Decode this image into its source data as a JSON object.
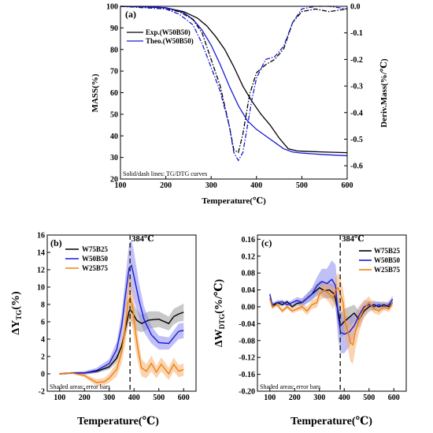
{
  "chart_data": [
    {
      "type": "line",
      "panel_label": "(a)",
      "xlabel": "Temperature(℃)",
      "ylabel": "MASS(%)",
      "ylabel_right": "Deriv.Mass(%/℃)",
      "xlim": [
        100,
        600
      ],
      "ylim": [
        20,
        100
      ],
      "ylim_right": [
        -0.65,
        0.0
      ],
      "xticks": [
        "100",
        "200",
        "300",
        "400",
        "500",
        "600"
      ],
      "yticks": [
        "20",
        "30",
        "40",
        "50",
        "60",
        "70",
        "80",
        "90",
        "100"
      ],
      "yticks_right": [
        "0.0",
        "-0.1",
        "-0.2",
        "-0.3",
        "-0.4",
        "-0.5",
        "-0.6"
      ],
      "legend_position": "upper-left",
      "note": "Solid/dash lines: TG/DTG curves",
      "series": [
        {
          "name": "Exp.(W50B50)",
          "color": "#000000",
          "axis": "left",
          "style": "solid",
          "x": [
            100,
            150,
            200,
            240,
            270,
            290,
            310,
            330,
            350,
            370,
            390,
            410,
            430,
            450,
            470,
            490,
            510,
            550,
            600
          ],
          "y": [
            100,
            99.8,
            99.3,
            97.5,
            94.5,
            91,
            86,
            80,
            72,
            63,
            56,
            50,
            45,
            39,
            34,
            33,
            32.8,
            32.5,
            32.2
          ]
        },
        {
          "name": "Theo.(W50B50)",
          "color": "#1a1ad8",
          "axis": "left",
          "style": "solid",
          "x": [
            100,
            150,
            200,
            240,
            260,
            280,
            300,
            320,
            340,
            360,
            380,
            400,
            420,
            440,
            460,
            480,
            500,
            550,
            600
          ],
          "y": [
            100,
            99.8,
            99.4,
            97,
            94,
            89,
            82,
            73,
            63,
            54,
            47,
            43,
            40,
            37,
            34,
            32.5,
            32,
            31.3,
            30.8
          ]
        },
        {
          "name": "Exp.(W50B50) DTG",
          "color": "#000000",
          "axis": "right",
          "style": "dashdot",
          "x": [
            100,
            150,
            200,
            230,
            260,
            280,
            300,
            320,
            340,
            350,
            360,
            370,
            385,
            400,
            420,
            440,
            460,
            480,
            500,
            530,
            560,
            600
          ],
          "y": [
            0,
            -0.005,
            -0.01,
            -0.02,
            -0.05,
            -0.1,
            -0.2,
            -0.3,
            -0.45,
            -0.54,
            -0.55,
            -0.48,
            -0.33,
            -0.25,
            -0.22,
            -0.2,
            -0.16,
            -0.06,
            -0.02,
            -0.01,
            -0.02,
            -0.01
          ]
        },
        {
          "name": "Theo.(W50B50) DTG",
          "color": "#1a1ad8",
          "axis": "right",
          "style": "dashdot",
          "x": [
            100,
            150,
            200,
            230,
            260,
            280,
            300,
            320,
            340,
            350,
            360,
            370,
            380,
            390,
            400,
            420,
            440,
            460,
            480,
            500,
            530,
            560,
            600
          ],
          "y": [
            0,
            -0.005,
            -0.01,
            -0.03,
            -0.07,
            -0.14,
            -0.23,
            -0.32,
            -0.45,
            -0.55,
            -0.58,
            -0.55,
            -0.45,
            -0.35,
            -0.27,
            -0.2,
            -0.19,
            -0.15,
            -0.06,
            -0.01,
            0.0,
            0.0,
            -0.01
          ]
        }
      ]
    },
    {
      "type": "line",
      "panel_label": "(b)",
      "xlabel": "Temperature(℃)",
      "ylabel": "ΔY",
      "ylabel_sub": "TG",
      "ylabel_unit": "(%)",
      "xlim": [
        50,
        650
      ],
      "ylim": [
        -2,
        16
      ],
      "xticks": [
        "100",
        "200",
        "300",
        "400",
        "500",
        "600"
      ],
      "yticks": [
        "-2",
        "0",
        "2",
        "4",
        "6",
        "8",
        "10",
        "12",
        "14",
        "16"
      ],
      "vline": {
        "x": 384,
        "label": "384℃"
      },
      "legend_position": "upper-left",
      "note": "Shaded areas: error bars",
      "series": [
        {
          "name": "W75B25",
          "color": "#000000",
          "band_color": "#9a9a9a",
          "x": [
            100,
            150,
            200,
            250,
            300,
            330,
            350,
            370,
            380,
            384,
            395,
            410,
            430,
            460,
            500,
            540,
            560,
            580,
            600
          ],
          "y": [
            0,
            0.1,
            0.1,
            0.3,
            0.8,
            1.8,
            3.2,
            5.8,
            7.2,
            7.4,
            7.0,
            6.2,
            5.8,
            6.2,
            6.3,
            5.8,
            6.6,
            6.9,
            7.1
          ],
          "err": [
            0.1,
            0.1,
            0.15,
            0.2,
            0.3,
            0.5,
            0.7,
            1.0,
            1.2,
            1.2,
            1.2,
            1.2,
            1.0,
            1.0,
            0.9,
            0.8,
            0.9,
            0.9,
            1.0
          ]
        },
        {
          "name": "W50B50",
          "color": "#1a1ad8",
          "band_color": "#8c8cf0",
          "x": [
            100,
            150,
            200,
            250,
            300,
            330,
            350,
            365,
            380,
            390,
            400,
            420,
            440,
            470,
            500,
            540,
            560,
            580,
            600
          ],
          "y": [
            0,
            0.1,
            0.1,
            0.4,
            1.2,
            2.8,
            5.5,
            9.0,
            12.2,
            12.5,
            11.2,
            8.5,
            6.3,
            4.5,
            3.6,
            3.5,
            4.2,
            4.9,
            5.0
          ],
          "err": [
            0.1,
            0.1,
            0.2,
            0.3,
            0.5,
            0.9,
            1.4,
            2.0,
            2.8,
            3.0,
            2.8,
            2.0,
            1.5,
            1.0,
            0.8,
            0.7,
            0.8,
            0.9,
            0.9
          ]
        },
        {
          "name": "W25B75",
          "color": "#f08010",
          "band_color": "#f5b070",
          "x": [
            100,
            150,
            200,
            230,
            250,
            280,
            300,
            330,
            350,
            365,
            375,
            385,
            395,
            405,
            415,
            430,
            450,
            470,
            490,
            510,
            540,
            560,
            580,
            600
          ],
          "y": [
            0,
            0.1,
            -0.2,
            -0.7,
            -1.0,
            -0.9,
            -0.5,
            0.5,
            2.5,
            5.5,
            8.2,
            8.9,
            7.5,
            5.0,
            3.0,
            0.7,
            0.3,
            1.2,
            0.2,
            1.1,
            0,
            1.1,
            0.3,
            0.5
          ],
          "err": [
            0.1,
            0.1,
            0.2,
            0.3,
            0.4,
            0.4,
            0.5,
            0.8,
            1.3,
            2.0,
            2.5,
            2.6,
            2.4,
            2.0,
            1.6,
            1.0,
            0.8,
            0.9,
            0.7,
            0.8,
            0.7,
            0.8,
            0.7,
            0.7
          ]
        }
      ]
    },
    {
      "type": "line",
      "panel_label": "(c)",
      "xlabel": "Temperature(℃)",
      "ylabel": "ΔW",
      "ylabel_sub": "DTG",
      "ylabel_unit": "(%/℃)",
      "xlim": [
        50,
        650
      ],
      "ylim": [
        -0.2,
        0.17
      ],
      "xticks": [
        "100",
        "200",
        "300",
        "400",
        "500",
        "600"
      ],
      "yticks": [
        "0.16",
        "0.12",
        "0.08",
        "0.04",
        "0.00",
        "-0.04",
        "-0.08",
        "-0.12",
        "-0.16",
        "-0.20"
      ],
      "vline": {
        "x": 384,
        "label": "384℃"
      },
      "legend_position": "upper-right",
      "note": "Shaded areas: error bars",
      "series": [
        {
          "name": "W75B25",
          "color": "#000000",
          "band_color": "#9a9a9a",
          "x": [
            100,
            110,
            130,
            150,
            170,
            190,
            210,
            230,
            250,
            270,
            290,
            300,
            320,
            340,
            360,
            375,
            385,
            400,
            420,
            440,
            460,
            480,
            500,
            520,
            540,
            560,
            580,
            595
          ],
          "y": [
            0.02,
            0.0,
            0.01,
            0.005,
            0.012,
            0.0,
            0.008,
            0.01,
            0.02,
            0.03,
            0.04,
            0.045,
            0.038,
            0.04,
            0.03,
            -0.01,
            -0.045,
            -0.035,
            -0.025,
            -0.015,
            -0.03,
            -0.01,
            0.0,
            0.005,
            0.0,
            0.005,
            0.0,
            0.01
          ],
          "err": [
            0.005,
            0.005,
            0.005,
            0.005,
            0.005,
            0.005,
            0.006,
            0.008,
            0.01,
            0.012,
            0.015,
            0.016,
            0.018,
            0.018,
            0.02,
            0.025,
            0.03,
            0.03,
            0.025,
            0.02,
            0.02,
            0.015,
            0.012,
            0.01,
            0.01,
            0.008,
            0.008,
            0.008
          ]
        },
        {
          "name": "W50B50",
          "color": "#1a1ad8",
          "band_color": "#8c8cf0",
          "x": [
            100,
            110,
            130,
            150,
            170,
            190,
            210,
            230,
            250,
            270,
            290,
            300,
            310,
            330,
            350,
            365,
            375,
            385,
            400,
            420,
            440,
            460,
            480,
            500,
            520,
            540,
            560,
            580,
            595
          ],
          "y": [
            0.03,
            0.005,
            0.01,
            0.012,
            0.005,
            0.01,
            0.015,
            0.01,
            0.02,
            0.03,
            0.05,
            0.055,
            0.06,
            0.055,
            0.065,
            0.05,
            -0.02,
            -0.06,
            -0.065,
            -0.06,
            -0.045,
            -0.02,
            0.0,
            0.005,
            0.0,
            0.005,
            0.0,
            0.005,
            0.018
          ],
          "err": [
            0.005,
            0.005,
            0.005,
            0.005,
            0.005,
            0.006,
            0.008,
            0.01,
            0.012,
            0.015,
            0.02,
            0.025,
            0.03,
            0.035,
            0.045,
            0.05,
            0.055,
            0.05,
            0.045,
            0.035,
            0.025,
            0.02,
            0.015,
            0.01,
            0.01,
            0.008,
            0.008,
            0.008,
            0.008
          ]
        },
        {
          "name": "W25B75",
          "color": "#f08010",
          "band_color": "#f5b070",
          "x": [
            100,
            110,
            130,
            150,
            170,
            190,
            210,
            230,
            250,
            270,
            290,
            300,
            320,
            340,
            355,
            365,
            375,
            385,
            395,
            405,
            415,
            425,
            435,
            445,
            460,
            480,
            500,
            520,
            540,
            560,
            580,
            595
          ],
          "y": [
            0.02,
            0.0,
            0.005,
            -0.01,
            0.0,
            -0.01,
            -0.005,
            0.0,
            -0.01,
            0.005,
            0.01,
            0.03,
            0.04,
            0.03,
            0.02,
            0.04,
            0.045,
            0.03,
            0.01,
            -0.04,
            -0.06,
            -0.085,
            -0.09,
            -0.06,
            -0.03,
            -0.005,
            0.01,
            -0.005,
            -0.01,
            0.0,
            -0.005,
            0.01
          ],
          "err": [
            0.005,
            0.005,
            0.005,
            0.005,
            0.005,
            0.005,
            0.006,
            0.008,
            0.01,
            0.01,
            0.012,
            0.015,
            0.018,
            0.02,
            0.025,
            0.03,
            0.035,
            0.035,
            0.035,
            0.04,
            0.04,
            0.045,
            0.045,
            0.04,
            0.03,
            0.02,
            0.015,
            0.01,
            0.01,
            0.008,
            0.008,
            0.008
          ]
        }
      ]
    }
  ]
}
